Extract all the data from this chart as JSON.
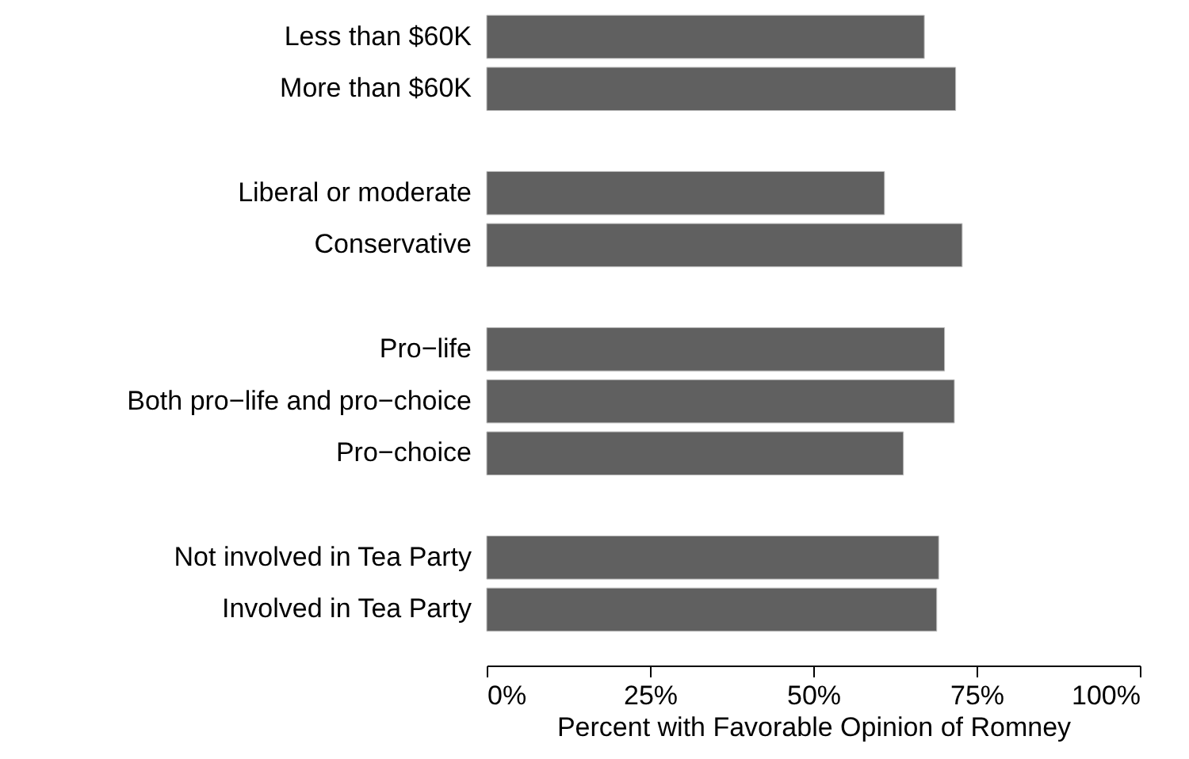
{
  "chart_data": {
    "type": "bar",
    "orientation": "horizontal",
    "xlabel": "Percent with Favorable Opinion of Romney",
    "categories": [
      "Less than $60K",
      "More than $60K",
      null,
      "Liberal or moderate",
      "Conservative",
      null,
      "Pro−life",
      "Both pro−life and pro−choice",
      "Pro−choice",
      null,
      "Not involved in Tea Party",
      "Involved in Tea Party"
    ],
    "values": [
      67.0,
      71.8,
      null,
      60.9,
      72.8,
      null,
      70.1,
      71.6,
      63.8,
      null,
      69.2,
      68.9
    ],
    "color": "#606060",
    "xlim": [
      0,
      100
    ],
    "xticks": [
      {
        "value": 0,
        "label": "0%"
      },
      {
        "value": 25,
        "label": "25%"
      },
      {
        "value": 50,
        "label": "50%"
      },
      {
        "value": 75,
        "label": "75%"
      },
      {
        "value": 100,
        "label": "100%"
      }
    ],
    "grid": false
  }
}
